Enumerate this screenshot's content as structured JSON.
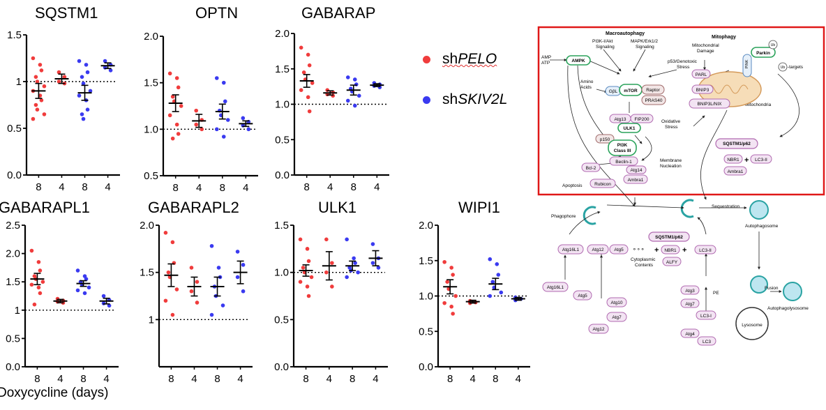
{
  "chart_data": [
    {
      "type": "scatter",
      "title": "SQSTM1",
      "yticks": [
        "0.0",
        "0.5",
        "1",
        "1.5"
      ],
      "ylim": [
        0,
        1.5
      ],
      "xticks": [
        "8",
        "4",
        "8",
        "4"
      ],
      "groups": [
        {
          "series": "shPELO",
          "mean": 0.9,
          "sem": 0.08,
          "points": [
            1.25,
            1.18,
            1.12,
            1.05,
            1.0,
            0.95,
            0.9,
            0.85,
            0.8,
            0.75,
            0.7,
            0.65,
            0.6
          ]
        },
        {
          "series": "shPELO",
          "mean": 1.03,
          "sem": 0.05,
          "points": [
            1.1,
            1.05,
            1.0,
            0.98
          ]
        },
        {
          "series": "shSKIV2L",
          "mean": 0.88,
          "sem": 0.08,
          "points": [
            1.22,
            1.18,
            1.1,
            1.05,
            0.98,
            0.9,
            0.85,
            0.8,
            0.7,
            0.65,
            0.6
          ]
        },
        {
          "series": "shSKIV2L",
          "mean": 1.17,
          "sem": 0.03,
          "points": [
            1.22,
            1.18,
            1.15,
            1.12
          ]
        }
      ]
    },
    {
      "type": "scatter",
      "title": "OPTN",
      "yticks": [
        "0.5",
        "1.0",
        "1.5",
        "2.0"
      ],
      "ylim": [
        0.5,
        2.0
      ],
      "xticks": [
        "8",
        "4",
        "8",
        "4"
      ],
      "groups": [
        {
          "series": "shPELO",
          "mean": 1.28,
          "sem": 0.09,
          "points": [
            1.6,
            1.55,
            1.45,
            1.35,
            1.3,
            1.25,
            1.15,
            1.05,
            0.95,
            0.9
          ]
        },
        {
          "series": "shPELO",
          "mean": 1.09,
          "sem": 0.07,
          "points": [
            1.2,
            1.1,
            1.05,
            1.0
          ]
        },
        {
          "series": "shSKIV2L",
          "mean": 1.19,
          "sem": 0.08,
          "points": [
            1.55,
            1.5,
            1.3,
            1.2,
            1.15,
            1.1,
            1.0,
            0.92
          ]
        },
        {
          "series": "shSKIV2L",
          "mean": 1.06,
          "sem": 0.03,
          "points": [
            1.12,
            1.08,
            1.04,
            1.0
          ]
        }
      ]
    },
    {
      "type": "scatter",
      "title": "GABARAP",
      "yticks": [
        "0.0",
        "0.5",
        "1.0",
        "1.5",
        "2.0"
      ],
      "ylim": [
        0,
        2.0
      ],
      "xticks": [
        "8",
        "4",
        "8",
        "4"
      ],
      "groups": [
        {
          "series": "shPELO",
          "mean": 1.33,
          "sem": 0.09,
          "points": [
            1.8,
            1.7,
            1.55,
            1.45,
            1.35,
            1.3,
            1.2,
            1.1,
            0.9
          ]
        },
        {
          "series": "shPELO",
          "mean": 1.16,
          "sem": 0.03,
          "points": [
            1.2,
            1.17,
            1.14,
            1.12
          ]
        },
        {
          "series": "shSKIV2L",
          "mean": 1.2,
          "sem": 0.07,
          "points": [
            1.38,
            1.35,
            1.28,
            1.22,
            1.18,
            1.12,
            1.05,
            0.98
          ]
        },
        {
          "series": "shSKIV2L",
          "mean": 1.27,
          "sem": 0.02,
          "points": [
            1.3,
            1.28,
            1.26,
            1.24
          ]
        }
      ]
    },
    {
      "type": "scatter",
      "title": "GABARAPL1",
      "yticks": [
        "0.0",
        "0.5",
        "1",
        "1.5",
        "2.0",
        "2.5"
      ],
      "ylim": [
        0,
        2.5
      ],
      "xticks": [
        "8",
        "4",
        "8",
        "4"
      ],
      "groups": [
        {
          "series": "shPELO",
          "mean": 1.55,
          "sem": 0.1,
          "points": [
            2.05,
            1.85,
            1.7,
            1.6,
            1.55,
            1.5,
            1.45,
            1.4,
            1.3,
            1.1
          ]
        },
        {
          "series": "shPELO",
          "mean": 1.16,
          "sem": 0.03,
          "points": [
            1.2,
            1.17,
            1.15,
            1.13
          ]
        },
        {
          "series": "shSKIV2L",
          "mean": 1.47,
          "sem": 0.05,
          "points": [
            1.7,
            1.6,
            1.55,
            1.5,
            1.45,
            1.4,
            1.35,
            1.3
          ]
        },
        {
          "series": "shSKIV2L",
          "mean": 1.16,
          "sem": 0.05,
          "points": [
            1.25,
            1.18,
            1.12,
            1.08
          ]
        }
      ]
    },
    {
      "type": "scatter",
      "title": "GABARAPL2",
      "yticks": [
        "1",
        "1.5",
        "2.0"
      ],
      "ylim": [
        0.5,
        2.0
      ],
      "xticks": [
        "8",
        "4",
        "8",
        "4"
      ],
      "groups": [
        {
          "series": "shPELO",
          "mean": 1.47,
          "sem": 0.12,
          "points": [
            1.92,
            1.82,
            1.6,
            1.5,
            1.45,
            1.32,
            1.2,
            1.05
          ]
        },
        {
          "series": "shPELO",
          "mean": 1.35,
          "sem": 0.1,
          "points": [
            1.55,
            1.4,
            1.3,
            1.18
          ]
        },
        {
          "series": "shSKIV2L",
          "mean": 1.35,
          "sem": 0.1,
          "points": [
            1.78,
            1.55,
            1.45,
            1.35,
            1.25,
            1.15,
            1.05
          ]
        },
        {
          "series": "shSKIV2L",
          "mean": 1.5,
          "sem": 0.12,
          "points": [
            1.72,
            1.58,
            1.45,
            1.3
          ]
        }
      ]
    },
    {
      "type": "scatter",
      "title": "ULK1",
      "yticks": [
        "0.0",
        "0.5",
        "1.0",
        "1.5"
      ],
      "ylim": [
        0,
        1.5
      ],
      "xticks": [
        "8",
        "4",
        "8",
        "4"
      ],
      "groups": [
        {
          "series": "shPELO",
          "mean": 1.02,
          "sem": 0.06,
          "points": [
            1.35,
            1.25,
            1.12,
            1.05,
            1.0,
            0.95,
            0.9,
            0.85,
            0.75
          ]
        },
        {
          "series": "shPELO",
          "mean": 1.07,
          "sem": 0.15,
          "points": [
            1.35,
            1.1,
            1.0,
            0.85
          ]
        },
        {
          "series": "shSKIV2L",
          "mean": 1.07,
          "sem": 0.05,
          "points": [
            1.35,
            1.15,
            1.1,
            1.05,
            1.02,
            1.0,
            0.95
          ]
        },
        {
          "series": "shSKIV2L",
          "mean": 1.15,
          "sem": 0.08,
          "points": [
            1.3,
            1.15,
            1.1,
            1.05
          ]
        }
      ]
    },
    {
      "type": "scatter",
      "title": "WIPI1",
      "yticks": [
        "0.0",
        "0.5",
        "1.0",
        "1.5",
        "2.0"
      ],
      "ylim": [
        0,
        2.0
      ],
      "xticks": [
        "8",
        "4",
        "8",
        "4"
      ],
      "groups": [
        {
          "series": "shPELO",
          "mean": 1.13,
          "sem": 0.1,
          "points": [
            1.48,
            1.4,
            1.3,
            1.2,
            1.1,
            1.0,
            0.9,
            0.85,
            0.75
          ]
        },
        {
          "series": "shPELO",
          "mean": 0.92,
          "sem": 0.02,
          "points": [
            0.93,
            0.91,
            0.9
          ]
        },
        {
          "series": "shSKIV2L",
          "mean": 1.17,
          "sem": 0.08,
          "points": [
            1.52,
            1.45,
            1.3,
            1.2,
            1.12,
            1.05,
            1.0
          ]
        },
        {
          "series": "shSKIV2L",
          "mean": 0.96,
          "sem": 0.02,
          "points": [
            0.98,
            0.96,
            0.94
          ]
        }
      ]
    }
  ],
  "xcaption": "Doxycycline (days)",
  "legend": [
    {
      "prefix": "sh",
      "name": "PELO",
      "color": "#f03c3c"
    },
    {
      "prefix": "sh",
      "name": "SKIV2L",
      "color": "#3a3af0"
    }
  ],
  "colors": {
    "pelo": "#f03c3c",
    "skiv": "#3a3af0",
    "frame": "#e01818"
  },
  "pathway": {
    "headings": {
      "macro": "Macroautophagy",
      "mito": "Mitophagy"
    },
    "text": {
      "pi3k": "PI3K-I/Akt",
      "pi3k2": "Signaling",
      "mapk": "MAPK/Erk1/2",
      "mapk2": "Signaling",
      "p53": "p53/Genotoxic",
      "p53b": "Stress",
      "mitodmg": "Mitochondrial",
      "mitodmg2": "Damage",
      "amp": "AMP",
      "atp": "ATP",
      "amino": "Amino",
      "amino2": "Acids",
      "oxid": "Oxidative",
      "oxid2": "Stress",
      "memb": "Membrane",
      "memb2": "Nucleation",
      "apoptosis": "Apoptosis",
      "mitochondria": "Mitochondria",
      "targets": "-targets",
      "ub": "Ub",
      "phagophore": "Phagophore",
      "sequestration": "Sequestration",
      "autophagosome": "Autophagosome",
      "fusion": "Fusion",
      "autophagolysosome": "Autophagolysosome",
      "lysosome": "Lysosome",
      "cyto": "Cytoplasmic",
      "cyto2": "Contents",
      "pe": "PE"
    },
    "nodes": {
      "ampk": "AMPK",
      "gbl": "GβL",
      "mtor": "mTOR",
      "raptor": "Raptor",
      "pras40": "PRAS40",
      "atg13": "Atg13",
      "fip200": "FIP200",
      "ulk1": "ULK1",
      "p150": "p150",
      "pi3k3": "PI3K",
      "pi3k3b": "Class III",
      "beclin": "Beclin-1",
      "bcl2": "Bcl-2",
      "atg14": "Atg14",
      "rubicon": "Rubicon",
      "ambra1": "Ambra1",
      "parl": "PARL",
      "pink": "PINK",
      "parkin": "Parkin",
      "bnip3": "BNIP3",
      "bnip3l": "BNIP3L/NIX",
      "sqstm1": "SQSTM1/p62",
      "nbr1": "NBR1",
      "lc3ii": "LC3-II",
      "ambra1b": "Ambra1",
      "atg16l1": "Atg16L1",
      "atg12": "Atg12",
      "atg5": "Atg5",
      "sqstm1b": "SQSTM1/p62",
      "nbr1b": "NBR1",
      "lc3iib": "LC3-II",
      "alfy": "ALFY",
      "atg16l1b": "Atg16L1",
      "atg5b": "Atg5",
      "atg10": "Atg10",
      "atg7": "Atg7",
      "atg12b": "Atg12",
      "atg3": "Atg3",
      "atg7b": "Atg7",
      "lc3i": "LC3-I",
      "atg4": "Atg4",
      "lc3": "LC3"
    }
  }
}
